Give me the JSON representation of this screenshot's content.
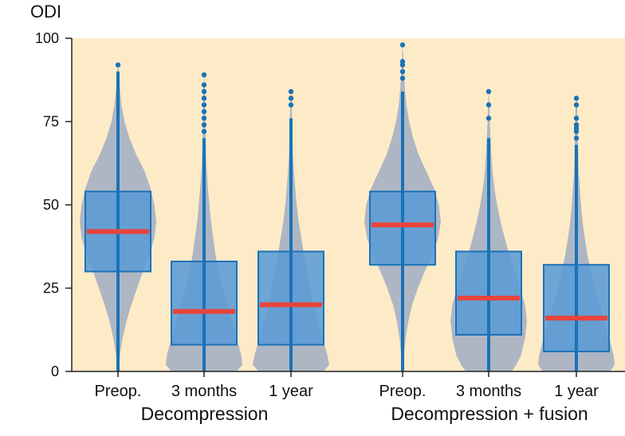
{
  "chart_data": {
    "type": "box-violin",
    "ylabel": "ODI",
    "ylim": [
      0,
      100
    ],
    "yticks": [
      0,
      25,
      50,
      75,
      100
    ],
    "groups": [
      {
        "label": "Decompression",
        "categories": [
          "Preop.",
          "3 months",
          "1 year"
        ]
      },
      {
        "label": "Decompression + fusion",
        "categories": [
          "Preop.",
          "3 months",
          "1 year"
        ]
      }
    ],
    "boxes": [
      {
        "group": "Decompression",
        "category": "Preop.",
        "q1": 30,
        "median": 42,
        "q3": 54,
        "whisker_low": 0,
        "whisker_high": 90,
        "outliers": [
          92
        ],
        "density": [
          [
            0,
            0.02
          ],
          [
            5,
            0.05
          ],
          [
            10,
            0.12
          ],
          [
            15,
            0.22
          ],
          [
            20,
            0.35
          ],
          [
            25,
            0.5
          ],
          [
            30,
            0.65
          ],
          [
            35,
            0.82
          ],
          [
            40,
            0.95
          ],
          [
            45,
            1.0
          ],
          [
            50,
            0.95
          ],
          [
            55,
            0.85
          ],
          [
            60,
            0.7
          ],
          [
            65,
            0.48
          ],
          [
            70,
            0.3
          ],
          [
            75,
            0.17
          ],
          [
            80,
            0.09
          ],
          [
            85,
            0.05
          ],
          [
            90,
            0.02
          ],
          [
            92,
            0.0
          ]
        ]
      },
      {
        "group": "Decompression",
        "category": "3 months",
        "q1": 8,
        "median": 18,
        "q3": 33,
        "whisker_low": 0,
        "whisker_high": 70,
        "outliers": [
          72,
          74,
          76,
          78,
          80,
          82,
          84,
          86,
          89
        ],
        "density": [
          [
            0,
            0.85
          ],
          [
            2,
            1.0
          ],
          [
            5,
            0.97
          ],
          [
            10,
            0.85
          ],
          [
            15,
            0.72
          ],
          [
            20,
            0.6
          ],
          [
            25,
            0.48
          ],
          [
            30,
            0.38
          ],
          [
            35,
            0.3
          ],
          [
            40,
            0.24
          ],
          [
            45,
            0.18
          ],
          [
            50,
            0.14
          ],
          [
            55,
            0.1
          ],
          [
            60,
            0.07
          ],
          [
            65,
            0.05
          ],
          [
            70,
            0.04
          ],
          [
            75,
            0.03
          ],
          [
            80,
            0.02
          ],
          [
            85,
            0.02
          ],
          [
            89,
            0.0
          ]
        ]
      },
      {
        "group": "Decompression",
        "category": "1 year",
        "q1": 8,
        "median": 20,
        "q3": 36,
        "whisker_low": 0,
        "whisker_high": 76,
        "outliers": [
          80,
          82,
          84
        ],
        "density": [
          [
            0,
            0.85
          ],
          [
            2,
            1.0
          ],
          [
            5,
            0.95
          ],
          [
            10,
            0.82
          ],
          [
            15,
            0.7
          ],
          [
            20,
            0.6
          ],
          [
            25,
            0.5
          ],
          [
            30,
            0.42
          ],
          [
            35,
            0.34
          ],
          [
            40,
            0.27
          ],
          [
            45,
            0.2
          ],
          [
            50,
            0.15
          ],
          [
            55,
            0.11
          ],
          [
            60,
            0.08
          ],
          [
            65,
            0.05
          ],
          [
            70,
            0.04
          ],
          [
            75,
            0.03
          ],
          [
            80,
            0.02
          ],
          [
            84,
            0.0
          ]
        ]
      },
      {
        "group": "Decompression + fusion",
        "category": "Preop.",
        "q1": 32,
        "median": 44,
        "q3": 54,
        "whisker_low": 0,
        "whisker_high": 84,
        "outliers": [
          88,
          90,
          92,
          93,
          98
        ],
        "density": [
          [
            0,
            0.02
          ],
          [
            5,
            0.04
          ],
          [
            10,
            0.08
          ],
          [
            15,
            0.15
          ],
          [
            20,
            0.25
          ],
          [
            25,
            0.4
          ],
          [
            30,
            0.58
          ],
          [
            35,
            0.78
          ],
          [
            40,
            0.93
          ],
          [
            45,
            1.0
          ],
          [
            50,
            0.95
          ],
          [
            55,
            0.82
          ],
          [
            60,
            0.62
          ],
          [
            65,
            0.42
          ],
          [
            70,
            0.28
          ],
          [
            75,
            0.17
          ],
          [
            80,
            0.1
          ],
          [
            85,
            0.06
          ],
          [
            90,
            0.03
          ],
          [
            95,
            0.015
          ],
          [
            98,
            0.0
          ]
        ]
      },
      {
        "group": "Decompression + fusion",
        "category": "3 months",
        "q1": 11,
        "median": 22,
        "q3": 36,
        "whisker_low": 0,
        "whisker_high": 70,
        "outliers": [
          76,
          80,
          84
        ],
        "density": [
          [
            0,
            0.6
          ],
          [
            2,
            0.72
          ],
          [
            5,
            0.85
          ],
          [
            10,
            0.95
          ],
          [
            15,
            1.0
          ],
          [
            20,
            0.95
          ],
          [
            25,
            0.82
          ],
          [
            30,
            0.68
          ],
          [
            35,
            0.54
          ],
          [
            40,
            0.42
          ],
          [
            45,
            0.31
          ],
          [
            50,
            0.22
          ],
          [
            55,
            0.15
          ],
          [
            60,
            0.1
          ],
          [
            65,
            0.07
          ],
          [
            70,
            0.05
          ],
          [
            75,
            0.03
          ],
          [
            80,
            0.02
          ],
          [
            84,
            0.0
          ]
        ]
      },
      {
        "group": "Decompression + fusion",
        "category": "1 year",
        "q1": 6,
        "median": 16,
        "q3": 32,
        "whisker_low": 0,
        "whisker_high": 68,
        "outliers": [
          70,
          72,
          73,
          74,
          76,
          80,
          82
        ],
        "density": [
          [
            0,
            0.88
          ],
          [
            2,
            1.0
          ],
          [
            5,
            0.97
          ],
          [
            10,
            0.86
          ],
          [
            15,
            0.72
          ],
          [
            20,
            0.6
          ],
          [
            25,
            0.48
          ],
          [
            30,
            0.38
          ],
          [
            35,
            0.29
          ],
          [
            40,
            0.22
          ],
          [
            45,
            0.16
          ],
          [
            50,
            0.12
          ],
          [
            55,
            0.09
          ],
          [
            60,
            0.06
          ],
          [
            65,
            0.05
          ],
          [
            70,
            0.04
          ],
          [
            75,
            0.03
          ],
          [
            80,
            0.02
          ],
          [
            82,
            0.0
          ]
        ]
      }
    ],
    "colors": {
      "plot_background": "#fdebc8",
      "violin": "#aeb6c3",
      "box_fill": "#5b9bd5",
      "box_stroke": "#1a72b8",
      "median": "#e8443a",
      "outlier": "#1a72b8",
      "axis": "#222222"
    }
  }
}
